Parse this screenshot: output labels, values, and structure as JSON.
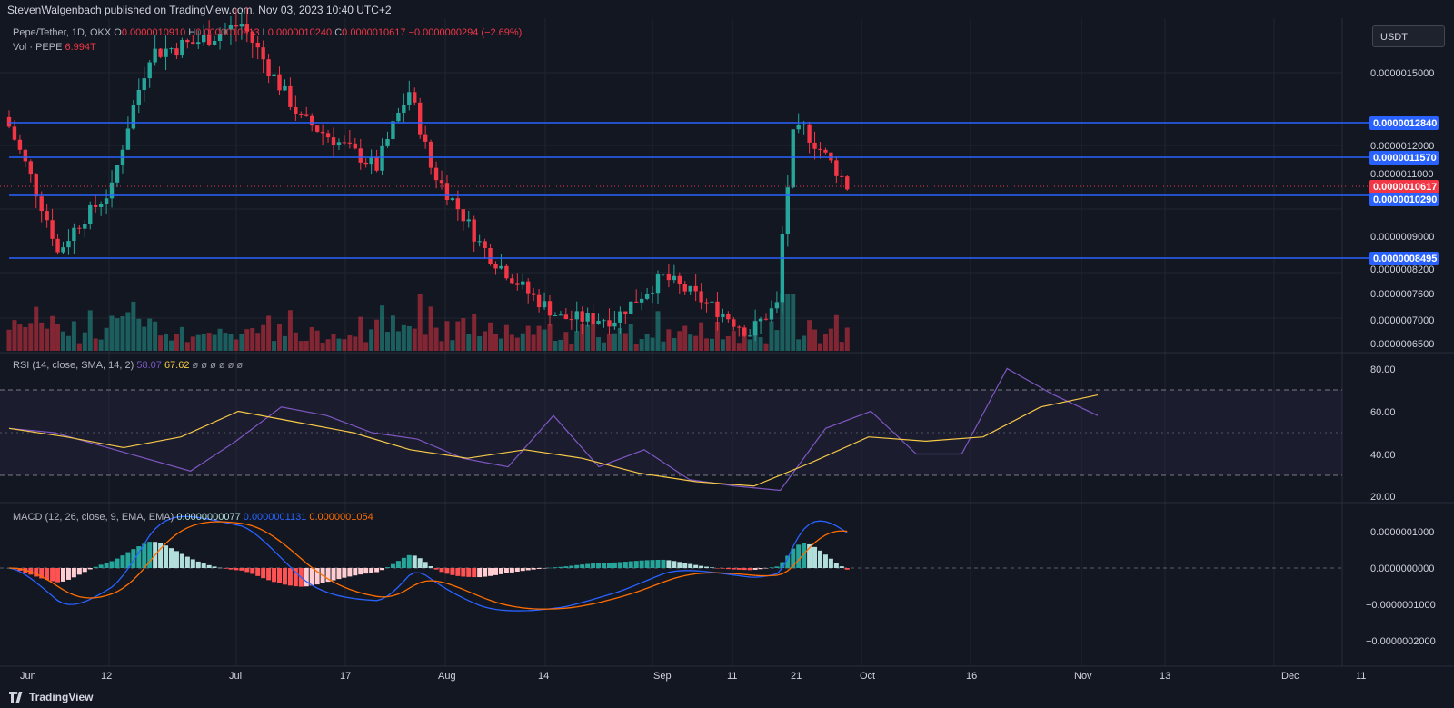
{
  "header": {
    "published": "StevenWalgenbach published on TradingView.com, Nov 03, 2023 10:40 UTC+2"
  },
  "legend": {
    "symbol": "Pepe/Tether, 1D, OKX",
    "o_label": "O",
    "o_value": "0.0000010910",
    "h_label": "H",
    "h_value": "0.0000010913",
    "l_label": "L",
    "l_value": "0.0000010240",
    "c_label": "C",
    "c_value": "0.0000010617",
    "change": "−0.0000000294 (−2.69%)",
    "vol_label": "Vol · PEPE",
    "vol_value": "6.994T",
    "rsi_label": "RSI (14, close, SMA, 14, 2)",
    "rsi_value": "58.07",
    "rsi_sma_value": "67.62",
    "rsi_extra": "ø ø ø ø ø ø",
    "macd_label": "MACD (12, 26, close, 9, EMA, EMA)",
    "macd_hist": "0.0000000077",
    "macd_line": "0.0000001131",
    "macd_signal": "0.0000001054"
  },
  "currency_button": "USDT",
  "footer": {
    "brand": "TradingView"
  },
  "colors": {
    "background": "#131722",
    "up": "#26a69a",
    "down": "#f23645",
    "level_line": "#2962ff",
    "rsi": "#7e57c2",
    "rsi_ma": "#f7c948",
    "macd": "#2962ff",
    "signal": "#ff6d00"
  },
  "chart_data": [
    {
      "type": "candlestick",
      "title": "Pepe/Tether, 1D, OKX",
      "x_ticks": [
        "Jun",
        "12",
        "Jul",
        "17",
        "Aug",
        "14",
        "Sep",
        "11",
        "21",
        "Oct",
        "16",
        "Nov",
        "13",
        "Dec",
        "11"
      ],
      "y_ticks": [
        "0.0000015000",
        "0.0000012000",
        "0.0000011000",
        "0.0000009000",
        "0.0000008200",
        "0.0000007600",
        "0.0000007000",
        "0.0000006500"
      ],
      "horizontal_levels": [
        "0.0000012840",
        "0.0000011570",
        "0.0000010290",
        "0.0000008495"
      ],
      "last_price": "0.0000010617",
      "price_series_approx": [
        {
          "date": "2023-06-01",
          "close": 1.27e-06
        },
        {
          "date": "2023-06-10",
          "close": 8.6e-07
        },
        {
          "date": "2023-06-20",
          "close": 1.05e-06
        },
        {
          "date": "2023-06-27",
          "close": 1.58e-06
        },
        {
          "date": "2023-07-05",
          "close": 1.62e-06
        },
        {
          "date": "2023-07-14",
          "close": 1.7e-06
        },
        {
          "date": "2023-07-25",
          "close": 1.3e-06
        },
        {
          "date": "2023-08-08",
          "close": 1.12e-06
        },
        {
          "date": "2023-08-14",
          "close": 1.42e-06
        },
        {
          "date": "2023-08-18",
          "close": 1.12e-06
        },
        {
          "date": "2023-08-27",
          "close": 8.8e-07
        },
        {
          "date": "2023-09-05",
          "close": 7.6e-07
        },
        {
          "date": "2023-09-11",
          "close": 7e-07
        },
        {
          "date": "2023-09-21",
          "close": 7e-07
        },
        {
          "date": "2023-09-30",
          "close": 8e-07
        },
        {
          "date": "2023-10-16",
          "close": 6.7e-07
        },
        {
          "date": "2023-10-21",
          "close": 7.3e-07
        },
        {
          "date": "2023-10-24",
          "close": 1.23e-06
        },
        {
          "date": "2023-10-26",
          "close": 1.26e-06
        },
        {
          "date": "2023-11-03",
          "close": 1.0617e-06
        }
      ]
    },
    {
      "type": "line",
      "title": "RSI (14, close, SMA, 14, 2)",
      "y_ticks": [
        "80.00",
        "60.00",
        "40.00",
        "20.00"
      ],
      "bands": [
        70,
        50,
        30
      ],
      "series": [
        {
          "name": "RSI",
          "values_approx": [
            52,
            50,
            44,
            38,
            32,
            46,
            62,
            58,
            50,
            47,
            38,
            34,
            58,
            34,
            42,
            28,
            25,
            23,
            52,
            60,
            40,
            40,
            80,
            68,
            58
          ]
        },
        {
          "name": "RSI SMA",
          "values_approx": [
            52,
            48,
            43,
            48,
            60,
            55,
            50,
            42,
            38,
            42,
            38,
            31,
            27,
            25,
            36,
            48,
            46,
            48,
            62,
            67.62
          ]
        }
      ]
    },
    {
      "type": "bar+line",
      "title": "MACD (12, 26, close, 9, EMA, EMA)",
      "y_ticks": [
        "0.0000001000",
        "0.0000000000",
        "−0.0000001000",
        "−0.0000002000"
      ],
      "series": [
        {
          "name": "MACD",
          "last": 1.131e-07
        },
        {
          "name": "Signal",
          "last": 1.054e-07
        },
        {
          "name": "Histogram",
          "last": 7.7e-09
        }
      ]
    }
  ]
}
